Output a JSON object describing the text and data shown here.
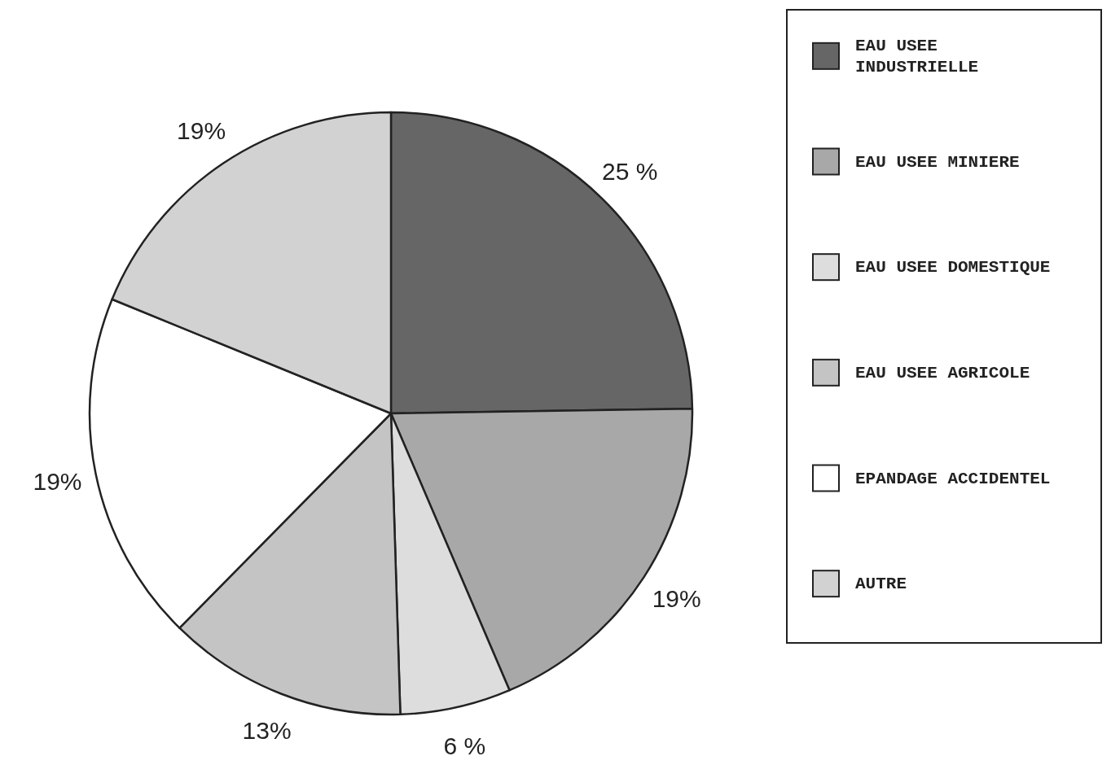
{
  "chart_data": {
    "type": "pie",
    "categories": [
      "EAU USEE INDUSTRIELLE",
      "EAU USEE MINIERE",
      "EAU USEE DOMESTIQUE",
      "EAU USEE AGRICOLE",
      "EPANDAGE ACCIDENTEL",
      "AUTRE"
    ],
    "values": [
      25,
      19,
      6,
      13,
      19,
      19
    ],
    "value_labels": [
      "25 %",
      "19%",
      "6 %",
      "13%",
      "19%",
      "19%"
    ],
    "colors": [
      "#666666",
      "#a8a8a8",
      "#dddddd",
      "#c4c4c4",
      "#ffffff",
      "#d2d2d2"
    ],
    "legend": "right"
  }
}
